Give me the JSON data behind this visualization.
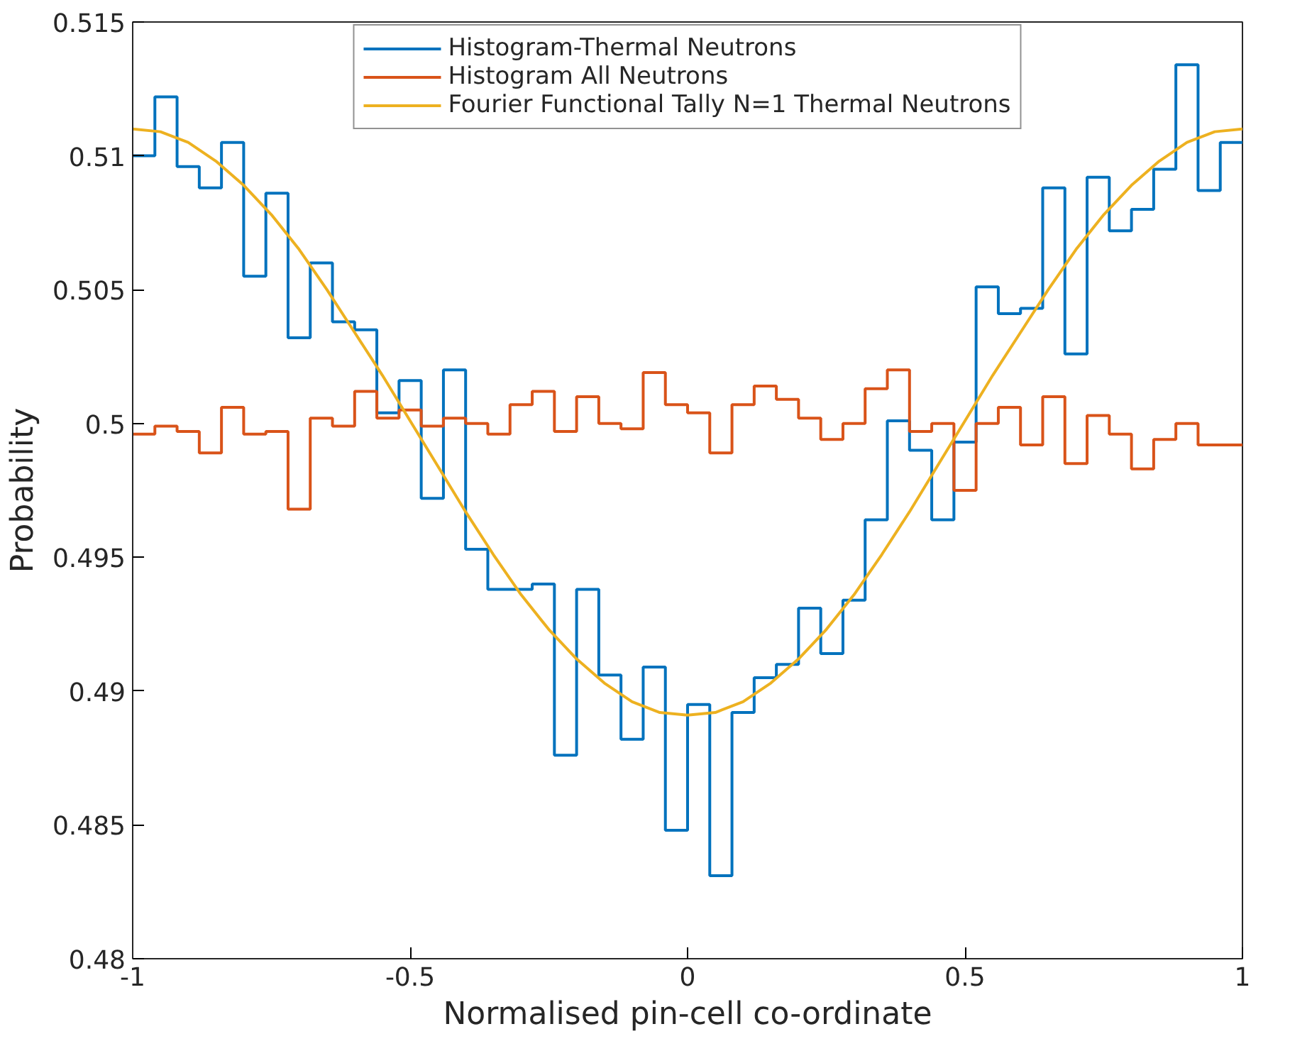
{
  "chart_data": {
    "type": "line",
    "xlabel": "Normalised pin-cell co-ordinate",
    "ylabel": "Probability",
    "xlim": [
      -1,
      1
    ],
    "xticks": [
      -1,
      -0.5,
      0,
      0.5,
      1
    ],
    "ylim": [
      0.48,
      0.515
    ],
    "yticks": [
      0.48,
      0.485,
      0.49,
      0.495,
      0.5,
      0.505,
      0.51,
      0.515
    ],
    "grid": false,
    "legend": "top",
    "series": [
      {
        "name": "Histogram-Thermal Neutrons",
        "type": "step",
        "color": "#0072bd",
        "x": [
          -1,
          -0.96,
          -0.92,
          -0.88,
          -0.84,
          -0.8,
          -0.76,
          -0.72,
          -0.68,
          -0.64,
          -0.6,
          -0.56,
          -0.52,
          -0.48,
          -0.44,
          -0.4,
          -0.36,
          -0.32,
          -0.28,
          -0.24,
          -0.2,
          -0.16,
          -0.12,
          -0.08,
          -0.04,
          0,
          0.04,
          0.08,
          0.12,
          0.16,
          0.2,
          0.24,
          0.28,
          0.32,
          0.36,
          0.4,
          0.44,
          0.48,
          0.52,
          0.56,
          0.6,
          0.64,
          0.68,
          0.72,
          0.76,
          0.8,
          0.84,
          0.88,
          0.92,
          0.96,
          1
        ],
        "values": [
          0.51,
          0.5122,
          0.5096,
          0.5088,
          0.5105,
          0.5055,
          0.5086,
          0.5032,
          0.506,
          0.5038,
          0.5035,
          0.5004,
          0.5016,
          0.4972,
          0.502,
          0.4953,
          0.4938,
          0.4938,
          0.494,
          0.4876,
          0.4938,
          0.4906,
          0.4882,
          0.4909,
          0.4848,
          0.4895,
          0.4831,
          0.4892,
          0.4905,
          0.491,
          0.4931,
          0.4914,
          0.4934,
          0.4964,
          0.5001,
          0.499,
          0.4964,
          0.4993,
          0.5051,
          0.5041,
          0.5043,
          0.5088,
          0.5026,
          0.5092,
          0.5072,
          0.508,
          0.5095,
          0.5134,
          0.5087,
          0.5105,
          0.5105
        ]
      },
      {
        "name": "Histogram All Neutrons",
        "type": "step",
        "color": "#d95319",
        "x": [
          -1,
          -0.96,
          -0.92,
          -0.88,
          -0.84,
          -0.8,
          -0.76,
          -0.72,
          -0.68,
          -0.64,
          -0.6,
          -0.56,
          -0.52,
          -0.48,
          -0.44,
          -0.4,
          -0.36,
          -0.32,
          -0.28,
          -0.24,
          -0.2,
          -0.16,
          -0.12,
          -0.08,
          -0.04,
          0,
          0.04,
          0.08,
          0.12,
          0.16,
          0.2,
          0.24,
          0.28,
          0.32,
          0.36,
          0.4,
          0.44,
          0.48,
          0.52,
          0.56,
          0.6,
          0.64,
          0.68,
          0.72,
          0.76,
          0.8,
          0.84,
          0.88,
          0.92,
          0.96,
          1
        ],
        "values": [
          0.4996,
          0.4999,
          0.4997,
          0.4989,
          0.5006,
          0.4996,
          0.4997,
          0.4968,
          0.5002,
          0.4999,
          0.5012,
          0.5002,
          0.5005,
          0.4999,
          0.5002,
          0.5,
          0.4996,
          0.5007,
          0.5012,
          0.4997,
          0.501,
          0.5,
          0.4998,
          0.5019,
          0.5007,
          0.5004,
          0.4989,
          0.5007,
          0.5014,
          0.5009,
          0.5002,
          0.4994,
          0.5,
          0.5013,
          0.502,
          0.4997,
          0.5,
          0.4975,
          0.5,
          0.5006,
          0.4992,
          0.501,
          0.4985,
          0.5003,
          0.4996,
          0.4983,
          0.4994,
          0.5,
          0.4992,
          0.4992,
          0.4992
        ]
      },
      {
        "name": "Fourier Functional Tally N=1 Thermal Neutrons",
        "color": "#edb120",
        "x": [
          -1,
          -0.95,
          -0.9,
          -0.85,
          -0.8,
          -0.75,
          -0.7,
          -0.65,
          -0.6,
          -0.55,
          -0.5,
          -0.45,
          -0.4,
          -0.35,
          -0.3,
          -0.25,
          -0.2,
          -0.15,
          -0.1,
          -0.05,
          0,
          0.05,
          0.1,
          0.15,
          0.2,
          0.25,
          0.3,
          0.35,
          0.4,
          0.45,
          0.5,
          0.55,
          0.6,
          0.65,
          0.7,
          0.75,
          0.8,
          0.85,
          0.9,
          0.95,
          1
        ],
        "values": [
          0.511,
          0.5109,
          0.5105,
          0.5098,
          0.5089,
          0.5078,
          0.5065,
          0.505,
          0.5034,
          0.5018,
          0.5001,
          0.4984,
          0.4967,
          0.4951,
          0.4936,
          0.4923,
          0.4912,
          0.4903,
          0.4896,
          0.4892,
          0.4891,
          0.4892,
          0.4896,
          0.4903,
          0.4912,
          0.4923,
          0.4936,
          0.4951,
          0.4967,
          0.4984,
          0.5001,
          0.5018,
          0.5034,
          0.505,
          0.5065,
          0.5078,
          0.5089,
          0.5098,
          0.5105,
          0.5109,
          0.511
        ]
      }
    ]
  }
}
